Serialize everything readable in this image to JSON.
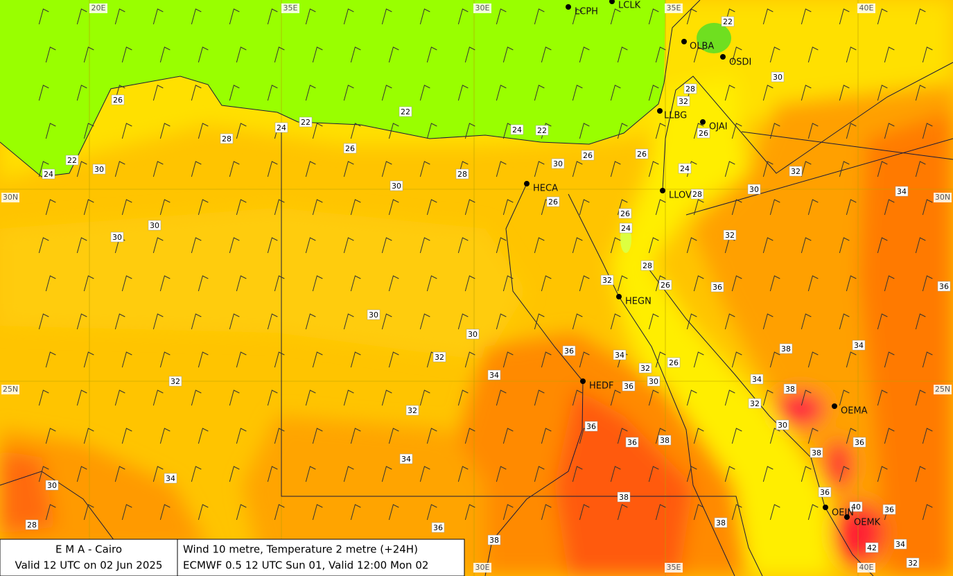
{
  "map": {
    "grid_labels": [
      "20E",
      "35E",
      "30E",
      "35E",
      "40E",
      "30E",
      "35E",
      "40E",
      "30N",
      "25N",
      "30N",
      "25N"
    ],
    "stations": [
      "LCPH",
      "LCLK",
      "OLBA",
      "OSDI",
      "LLBG",
      "OJAI",
      "HECA",
      "LLOV",
      "HEGN",
      "HEDF",
      "OEMA",
      "OEJN",
      "OEMK"
    ],
    "temperature_labels": [
      26,
      28,
      22,
      24,
      30,
      24,
      22,
      26,
      22,
      30,
      28,
      24,
      22,
      30,
      26,
      26,
      22,
      28,
      32,
      26,
      24,
      28,
      30,
      32,
      30,
      34,
      26,
      26,
      24,
      32,
      30,
      30,
      28,
      32,
      26,
      36,
      36,
      30,
      30,
      36,
      34,
      38,
      34,
      32,
      32,
      26,
      34,
      30,
      36,
      34,
      38,
      32,
      32,
      32,
      36,
      30,
      36,
      38,
      36,
      38,
      34,
      34,
      30,
      38,
      36,
      40,
      36,
      28,
      36,
      38,
      38,
      34,
      42,
      32
    ]
  },
  "footer": {
    "left": [
      "E M A  -  Cairo",
      "Valid 12 UTC on 02 Jun 2025"
    ],
    "right": [
      "Wind  10 metre, Temperature  2 metre (+24H)",
      "ECMWF 0.5 12 UTC Sun 01, Valid 12:00 Mon 02"
    ]
  }
}
